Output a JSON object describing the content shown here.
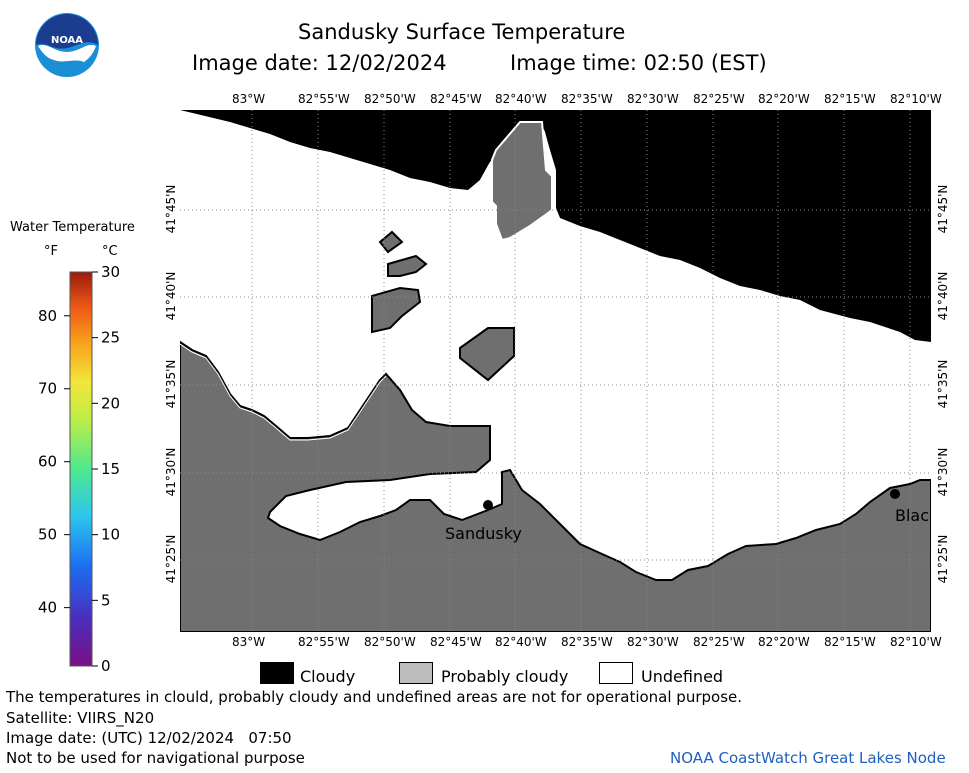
{
  "title": "Sandusky Surface Temperature",
  "image_date": "Image date: 12/02/2024",
  "image_time": "Image time: 02:50 (EST)",
  "logo_text": "NOAA",
  "colorbar": {
    "title": "Water Temperature",
    "unit_f": "°F",
    "unit_c": "°C",
    "f_ticks": [
      "40",
      "50",
      "60",
      "70",
      "80"
    ],
    "c_ticks": [
      "0",
      "5",
      "10",
      "15",
      "20",
      "25",
      "30"
    ]
  },
  "map": {
    "lon_labels": [
      "83°W",
      "82°55'W",
      "82°50'W",
      "82°45'W",
      "82°40'W",
      "82°35'W",
      "82°30'W",
      "82°25'W",
      "82°20'W",
      "82°15'W",
      "82°10'W"
    ],
    "lat_labels": [
      "41°45'N",
      "41°40'N",
      "41°35'N",
      "41°30'N",
      "41°25'N"
    ],
    "cities": [
      {
        "name": "Sandusky"
      },
      {
        "name": "Blac"
      }
    ]
  },
  "legend": {
    "cloudy": "Cloudy",
    "probably_cloudy": "Probably cloudy",
    "undefined": "Undefined"
  },
  "footer": {
    "disclaimer": "The temperatures in clould, probably cloudy and undefined areas are not for operational purpose.",
    "satellite": "Satellite: VIIRS_N20",
    "utc_date": "Image date: (UTC) 12/02/2024   07:50",
    "nav_warning": "Not to be used for navigational purpose",
    "credit": "NOAA CoastWatch Great Lakes Node"
  },
  "colors": {
    "cloudy": "#000000",
    "land_probably_cloudy": "#6f6f6f",
    "probably_cloudy_patch": "#9a9a9a",
    "undefined": "#ffffff",
    "credit_blue": "#1f5fbf",
    "noaa_blue": "#1b8fd6",
    "noaa_navy": "#1a3d8f"
  }
}
